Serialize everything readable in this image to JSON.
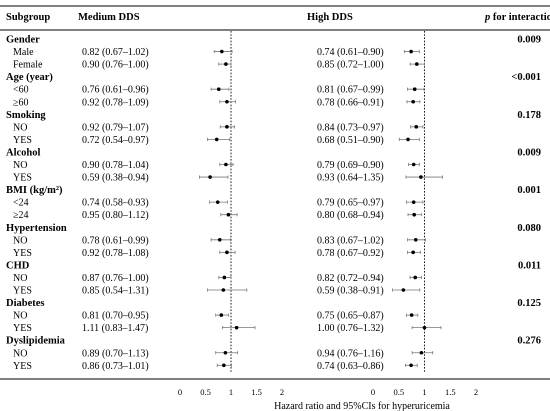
{
  "headers": {
    "subgroup": "Subgroup",
    "medium": "Medium DDS",
    "high": "High DDS",
    "p_italic": "p",
    "p_rest": " for interaction"
  },
  "x_axis_label": "Hazard ratio and 95%CIs for hyperuricemia",
  "colors": {
    "ink": "#000000",
    "ref_line": "#000000",
    "ci_line": "#777777"
  },
  "chart_data": {
    "type": "forest",
    "xlabel": "Hazard ratio and 95%CIs for hyperuricemia",
    "xlim": [
      0,
      2
    ],
    "reference_line": 1,
    "ticks": [
      {
        "value": 0,
        "label": "0"
      },
      {
        "value": 0.5,
        "label": "0.5"
      },
      {
        "value": 1,
        "label": "1"
      },
      {
        "value": 1.5,
        "label": "1.5"
      },
      {
        "value": 2,
        "label": "2"
      }
    ],
    "series": [
      {
        "name": "Medium DDS"
      },
      {
        "name": "High DDS"
      }
    ],
    "groups": [
      {
        "name": "Gender",
        "p": "0.009",
        "levels": [
          {
            "label": "Male",
            "medium": {
              "hr": 0.82,
              "lo": 0.67,
              "hi": 1.02,
              "text": "0.82 (0.67–1.02)"
            },
            "high": {
              "hr": 0.74,
              "lo": 0.61,
              "hi": 0.9,
              "text": "0.74 (0.61–0.90)"
            }
          },
          {
            "label": "Female",
            "medium": {
              "hr": 0.9,
              "lo": 0.76,
              "hi": 1.0,
              "text": "0.90 (0.76–1.00)"
            },
            "high": {
              "hr": 0.85,
              "lo": 0.72,
              "hi": 1.0,
              "text": "0.85 (0.72–1.00)"
            }
          }
        ]
      },
      {
        "name": "Age (year)",
        "p": "<0.001",
        "levels": [
          {
            "label": "<60",
            "medium": {
              "hr": 0.76,
              "lo": 0.61,
              "hi": 0.96,
              "text": "0.76 (0.61–0.96)"
            },
            "high": {
              "hr": 0.81,
              "lo": 0.67,
              "hi": 0.99,
              "text": "0.81 (0.67–0.99)"
            }
          },
          {
            "label": "≥60",
            "medium": {
              "hr": 0.92,
              "lo": 0.78,
              "hi": 1.09,
              "text": "0.92 (0.78–1.09)"
            },
            "high": {
              "hr": 0.78,
              "lo": 0.66,
              "hi": 0.91,
              "text": "0.78 (0.66–0.91)"
            }
          }
        ]
      },
      {
        "name": "Smoking",
        "p": "0.178",
        "levels": [
          {
            "label": "NO",
            "medium": {
              "hr": 0.92,
              "lo": 0.79,
              "hi": 1.07,
              "text": "0.92 (0.79–1.07)"
            },
            "high": {
              "hr": 0.84,
              "lo": 0.73,
              "hi": 0.97,
              "text": "0.84 (0.73–0.97)"
            }
          },
          {
            "label": "YES",
            "medium": {
              "hr": 0.72,
              "lo": 0.54,
              "hi": 0.97,
              "text": "0.72 (0.54–0.97)"
            },
            "high": {
              "hr": 0.68,
              "lo": 0.51,
              "hi": 0.9,
              "text": "0.68 (0.51–0.90)"
            }
          }
        ]
      },
      {
        "name": "Alcohol",
        "p": "0.009",
        "levels": [
          {
            "label": "NO",
            "medium": {
              "hr": 0.9,
              "lo": 0.78,
              "hi": 1.04,
              "text": "0.90 (0.78–1.04)"
            },
            "high": {
              "hr": 0.79,
              "lo": 0.69,
              "hi": 0.9,
              "text": "0.79 (0.69–0.90)"
            }
          },
          {
            "label": "YES",
            "medium": {
              "hr": 0.59,
              "lo": 0.38,
              "hi": 0.94,
              "text": "0.59 (0.38–0.94)"
            },
            "high": {
              "hr": 0.93,
              "lo": 0.64,
              "hi": 1.35,
              "text": "0.93 (0.64–1.35)"
            }
          }
        ]
      },
      {
        "name": "BMI (kg/m²)",
        "p": "0.001",
        "levels": [
          {
            "label": "<24",
            "medium": {
              "hr": 0.74,
              "lo": 0.58,
              "hi": 0.93,
              "text": "0.74 (0.58–0.93)"
            },
            "high": {
              "hr": 0.79,
              "lo": 0.65,
              "hi": 0.97,
              "text": "0.79 (0.65–0.97)"
            }
          },
          {
            "label": "≥24",
            "medium": {
              "hr": 0.95,
              "lo": 0.8,
              "hi": 1.12,
              "text": "0.95 (0.80–1.12)"
            },
            "high": {
              "hr": 0.8,
              "lo": 0.68,
              "hi": 0.94,
              "text": "0.80 (0.68–0.94)"
            }
          }
        ]
      },
      {
        "name": "Hypertension",
        "p": "0.080",
        "levels": [
          {
            "label": "NO",
            "medium": {
              "hr": 0.78,
              "lo": 0.61,
              "hi": 0.99,
              "text": "0.78 (0.61–0.99)"
            },
            "high": {
              "hr": 0.83,
              "lo": 0.67,
              "hi": 1.02,
              "text": "0.83 (0.67–1.02)"
            }
          },
          {
            "label": "YES",
            "medium": {
              "hr": 0.92,
              "lo": 0.78,
              "hi": 1.08,
              "text": "0.92 (0.78–1.08)"
            },
            "high": {
              "hr": 0.78,
              "lo": 0.67,
              "hi": 0.92,
              "text": "0.78 (0.67–0.92)"
            }
          }
        ]
      },
      {
        "name": "CHD",
        "p": "0.011",
        "levels": [
          {
            "label": "NO",
            "medium": {
              "hr": 0.87,
              "lo": 0.76,
              "hi": 1.0,
              "text": "0.87 (0.76–1.00)"
            },
            "high": {
              "hr": 0.82,
              "lo": 0.72,
              "hi": 0.94,
              "text": "0.82 (0.72–0.94)"
            }
          },
          {
            "label": "YES",
            "medium": {
              "hr": 0.85,
              "lo": 0.54,
              "hi": 1.31,
              "text": "0.85 (0.54–1.31)"
            },
            "high": {
              "hr": 0.59,
              "lo": 0.38,
              "hi": 0.91,
              "text": "0.59 (0.38–0.91)"
            }
          }
        ]
      },
      {
        "name": "Diabetes",
        "p": "0.125",
        "levels": [
          {
            "label": "NO",
            "medium": {
              "hr": 0.81,
              "lo": 0.7,
              "hi": 0.95,
              "text": "0.81 (0.70–0.95)"
            },
            "high": {
              "hr": 0.75,
              "lo": 0.65,
              "hi": 0.87,
              "text": "0.75 (0.65–0.87)"
            }
          },
          {
            "label": "YES",
            "medium": {
              "hr": 1.11,
              "lo": 0.83,
              "hi": 1.47,
              "text": "1.11 (0.83–1.47)"
            },
            "high": {
              "hr": 1.0,
              "lo": 0.76,
              "hi": 1.32,
              "text": "1.00 (0.76–1.32)"
            }
          }
        ]
      },
      {
        "name": "Dyslipidemia",
        "p": "0.276",
        "levels": [
          {
            "label": "NO",
            "medium": {
              "hr": 0.89,
              "lo": 0.7,
              "hi": 1.13,
              "text": "0.89 (0.70–1.13)"
            },
            "high": {
              "hr": 0.94,
              "lo": 0.76,
              "hi": 1.16,
              "text": "0.94 (0.76–1.16)"
            }
          },
          {
            "label": "YES",
            "medium": {
              "hr": 0.86,
              "lo": 0.73,
              "hi": 1.01,
              "text": "0.86 (0.73–1.01)"
            },
            "high": {
              "hr": 0.74,
              "lo": 0.63,
              "hi": 0.86,
              "text": "0.74 (0.63–0.86)"
            }
          }
        ]
      }
    ]
  }
}
